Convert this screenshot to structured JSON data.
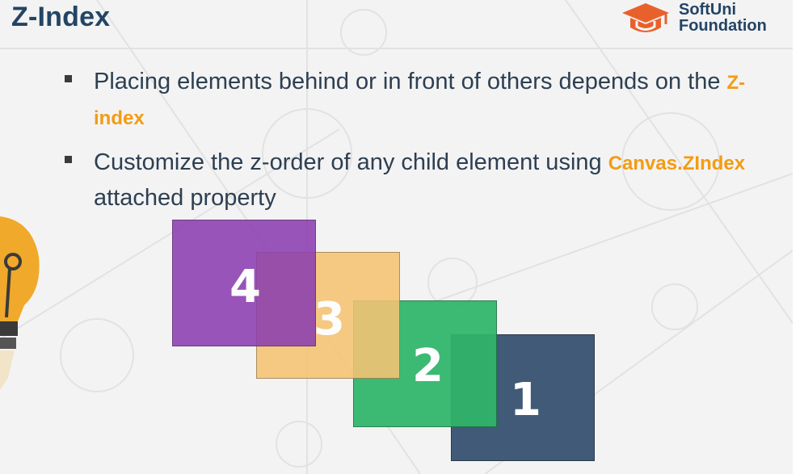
{
  "slide": {
    "title": "Z-Index",
    "logo": {
      "line1": "SoftUni",
      "line2": "Foundation"
    },
    "bullets": [
      {
        "text_before": "Placing elements behind or in front of others depends on the ",
        "highlight": "Z-index",
        "text_after": ""
      },
      {
        "text_before": "Customize the z-order of any child element using ",
        "highlight": "Canvas.ZIndex",
        "text_after": " attached property"
      }
    ]
  },
  "boxes": [
    {
      "label": "1",
      "color": "#405a78"
    },
    {
      "label": "2",
      "color": "#2fb56a"
    },
    {
      "label": "3",
      "color": "#f6c473"
    },
    {
      "label": "4",
      "color": "#8c3fb0"
    }
  ],
  "colors": {
    "title": "#234465",
    "accent": "#f39c12",
    "text": "#2d3f52",
    "logo": "#e8612c"
  }
}
